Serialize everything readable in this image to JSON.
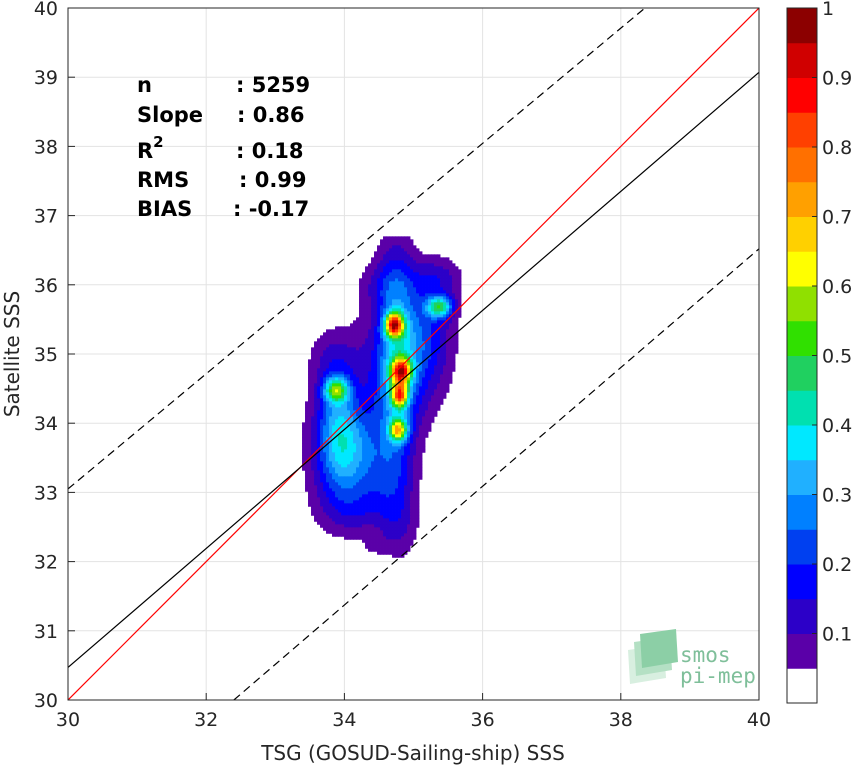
{
  "chart_data": {
    "type": "heatmap",
    "xlabel": "TSG (GOSUD-Sailing-ship) SSS",
    "ylabel": "Satellite SSS",
    "xlim": [
      30,
      40
    ],
    "ylim": [
      30,
      40
    ],
    "x_ticks": [
      "30",
      "32",
      "34",
      "36",
      "38",
      "40"
    ],
    "y_ticks": [
      "30",
      "31",
      "32",
      "33",
      "34",
      "35",
      "36",
      "37",
      "38",
      "39",
      "40"
    ],
    "grid": true,
    "reference_lines": [
      {
        "kind": "identity",
        "color": "#ff0000",
        "style": "solid",
        "points": [
          [
            30,
            30
          ],
          [
            40,
            40
          ]
        ]
      },
      {
        "kind": "fit",
        "color": "#000000",
        "style": "solid",
        "points": [
          [
            30,
            30.47
          ],
          [
            40,
            39.07
          ]
        ]
      },
      {
        "kind": "fit-upper",
        "color": "#000000",
        "style": "dashed",
        "points": [
          [
            30,
            33.05
          ],
          [
            38.35,
            40
          ]
        ]
      },
      {
        "kind": "fit-lower",
        "color": "#000000",
        "style": "dashed",
        "points": [
          [
            32.4,
            30
          ],
          [
            40,
            36.52
          ]
        ]
      }
    ],
    "stats": [
      {
        "label": "n",
        "sup": "",
        "value": ": 5259"
      },
      {
        "label": "Slope",
        "sup": "",
        "value": ": 0.86"
      },
      {
        "label": "R",
        "sup": "2",
        "value": ": 0.18"
      },
      {
        "label": "RMS",
        "sup": "",
        "value": ": 0.99"
      },
      {
        "label": "BIAS",
        "sup": "",
        "value": ": -0.17"
      }
    ],
    "density_blobs": [
      {
        "x": 34.72,
        "y": 35.42,
        "sx": 0.09,
        "sy": 0.12,
        "a": 1.0
      },
      {
        "x": 34.82,
        "y": 34.75,
        "sx": 0.1,
        "sy": 0.13,
        "a": 0.9
      },
      {
        "x": 34.8,
        "y": 34.4,
        "sx": 0.08,
        "sy": 0.12,
        "a": 0.8
      },
      {
        "x": 34.78,
        "y": 33.9,
        "sx": 0.09,
        "sy": 0.11,
        "a": 0.72
      },
      {
        "x": 34.75,
        "y": 34.9,
        "sx": 0.2,
        "sy": 1.2,
        "a": 0.35
      },
      {
        "x": 35.38,
        "y": 35.68,
        "sx": 0.13,
        "sy": 0.11,
        "a": 0.58
      },
      {
        "x": 35.15,
        "y": 35.3,
        "sx": 0.3,
        "sy": 0.5,
        "a": 0.22
      },
      {
        "x": 33.88,
        "y": 34.48,
        "sx": 0.12,
        "sy": 0.12,
        "a": 0.55
      },
      {
        "x": 33.9,
        "y": 34.1,
        "sx": 0.2,
        "sy": 0.5,
        "a": 0.28
      },
      {
        "x": 34.0,
        "y": 33.3,
        "sx": 0.25,
        "sy": 0.4,
        "a": 0.22
      },
      {
        "x": 34.15,
        "y": 33.75,
        "sx": 0.32,
        "sy": 0.35,
        "a": 0.18
      },
      {
        "x": 34.4,
        "y": 34.5,
        "sx": 0.35,
        "sy": 0.8,
        "a": 0.14
      },
      {
        "x": 34.55,
        "y": 33.2,
        "sx": 0.3,
        "sy": 0.35,
        "a": 0.16
      },
      {
        "x": 34.2,
        "y": 32.7,
        "sx": 0.35,
        "sy": 0.25,
        "a": 0.12
      },
      {
        "x": 34.8,
        "y": 32.5,
        "sx": 0.2,
        "sy": 0.35,
        "a": 0.11
      },
      {
        "x": 33.75,
        "y": 33.6,
        "sx": 0.3,
        "sy": 0.8,
        "a": 0.1
      },
      {
        "x": 35.05,
        "y": 34.7,
        "sx": 0.3,
        "sy": 0.6,
        "a": 0.14
      },
      {
        "x": 35.35,
        "y": 36.1,
        "sx": 0.25,
        "sy": 0.22,
        "a": 0.16
      },
      {
        "x": 34.6,
        "y": 36.0,
        "sx": 0.28,
        "sy": 0.25,
        "a": 0.12
      },
      {
        "x": 34.45,
        "y": 32.25,
        "sx": 0.12,
        "sy": 0.1,
        "a": 0.08
      },
      {
        "x": 33.8,
        "y": 34.95,
        "sx": 0.25,
        "sy": 0.3,
        "a": 0.09
      }
    ],
    "colorbar": {
      "min": 0,
      "max": 1,
      "ticks": [
        "0.1",
        "0.2",
        "0.3",
        "0.4",
        "0.5",
        "0.6",
        "0.7",
        "0.8",
        "0.9",
        "1"
      ],
      "colors": [
        "#ffffff",
        "#5a00a8",
        "#2c00c8",
        "#0000ff",
        "#0040f0",
        "#0080ff",
        "#20b0ff",
        "#00e8ff",
        "#00e0b0",
        "#20d060",
        "#30e000",
        "#90e000",
        "#ffff00",
        "#ffd000",
        "#ffa000",
        "#ff7000",
        "#ff4000",
        "#ff0000",
        "#d00000",
        "#8c0000"
      ]
    }
  },
  "logo": {
    "line1": "smos",
    "line2": "pi-mep"
  }
}
